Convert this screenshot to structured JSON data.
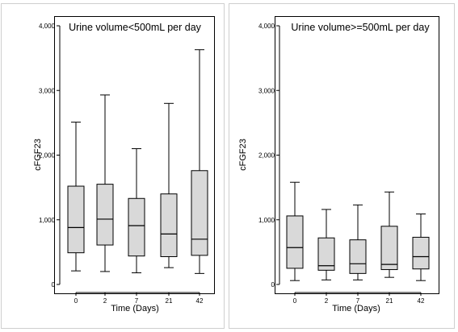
{
  "chart_data": [
    {
      "type": "box",
      "title": "Urine volume<500mL per day",
      "xlabel": "Time (Days)",
      "ylabel": "cFGF23",
      "ylim": [
        0,
        4000
      ],
      "yticks": [
        0,
        1000,
        2000,
        3000,
        4000
      ],
      "ytick_labels": [
        "0",
        "1,000",
        "2,000",
        "3,000",
        "4,000"
      ],
      "categories": [
        "0",
        "2",
        "7",
        "21",
        "42"
      ],
      "box_color": "#d9d9d9",
      "grid": false,
      "boxes": [
        {
          "min": 210,
          "q1": 490,
          "median": 880,
          "q3": 1520,
          "max": 2510
        },
        {
          "min": 200,
          "q1": 610,
          "median": 1010,
          "q3": 1550,
          "max": 2930
        },
        {
          "min": 180,
          "q1": 440,
          "median": 910,
          "q3": 1330,
          "max": 2100
        },
        {
          "min": 260,
          "q1": 430,
          "median": 780,
          "q3": 1400,
          "max": 2800
        },
        {
          "min": 170,
          "q1": 450,
          "median": 700,
          "q3": 1760,
          "max": 3630
        }
      ]
    },
    {
      "type": "box",
      "title": "Urine volume>=500mL per day",
      "xlabel": "Time (Days)",
      "ylabel": "cFGF23",
      "ylim": [
        0,
        4000
      ],
      "yticks": [
        0,
        1000,
        2000,
        3000,
        4000
      ],
      "ytick_labels": [
        "0",
        "1,000",
        "2,000",
        "3,000",
        "4,000"
      ],
      "categories": [
        "0",
        "2",
        "7",
        "21",
        "42"
      ],
      "box_color": "#d9d9d9",
      "grid": false,
      "boxes": [
        {
          "min": 60,
          "q1": 250,
          "median": 570,
          "q3": 1060,
          "max": 1580
        },
        {
          "min": 70,
          "q1": 220,
          "median": 290,
          "q3": 720,
          "max": 1160
        },
        {
          "min": 70,
          "q1": 170,
          "median": 320,
          "q3": 690,
          "max": 1230
        },
        {
          "min": 110,
          "q1": 230,
          "median": 310,
          "q3": 900,
          "max": 1430
        },
        {
          "min": 60,
          "q1": 240,
          "median": 430,
          "q3": 730,
          "max": 1090
        }
      ]
    }
  ]
}
